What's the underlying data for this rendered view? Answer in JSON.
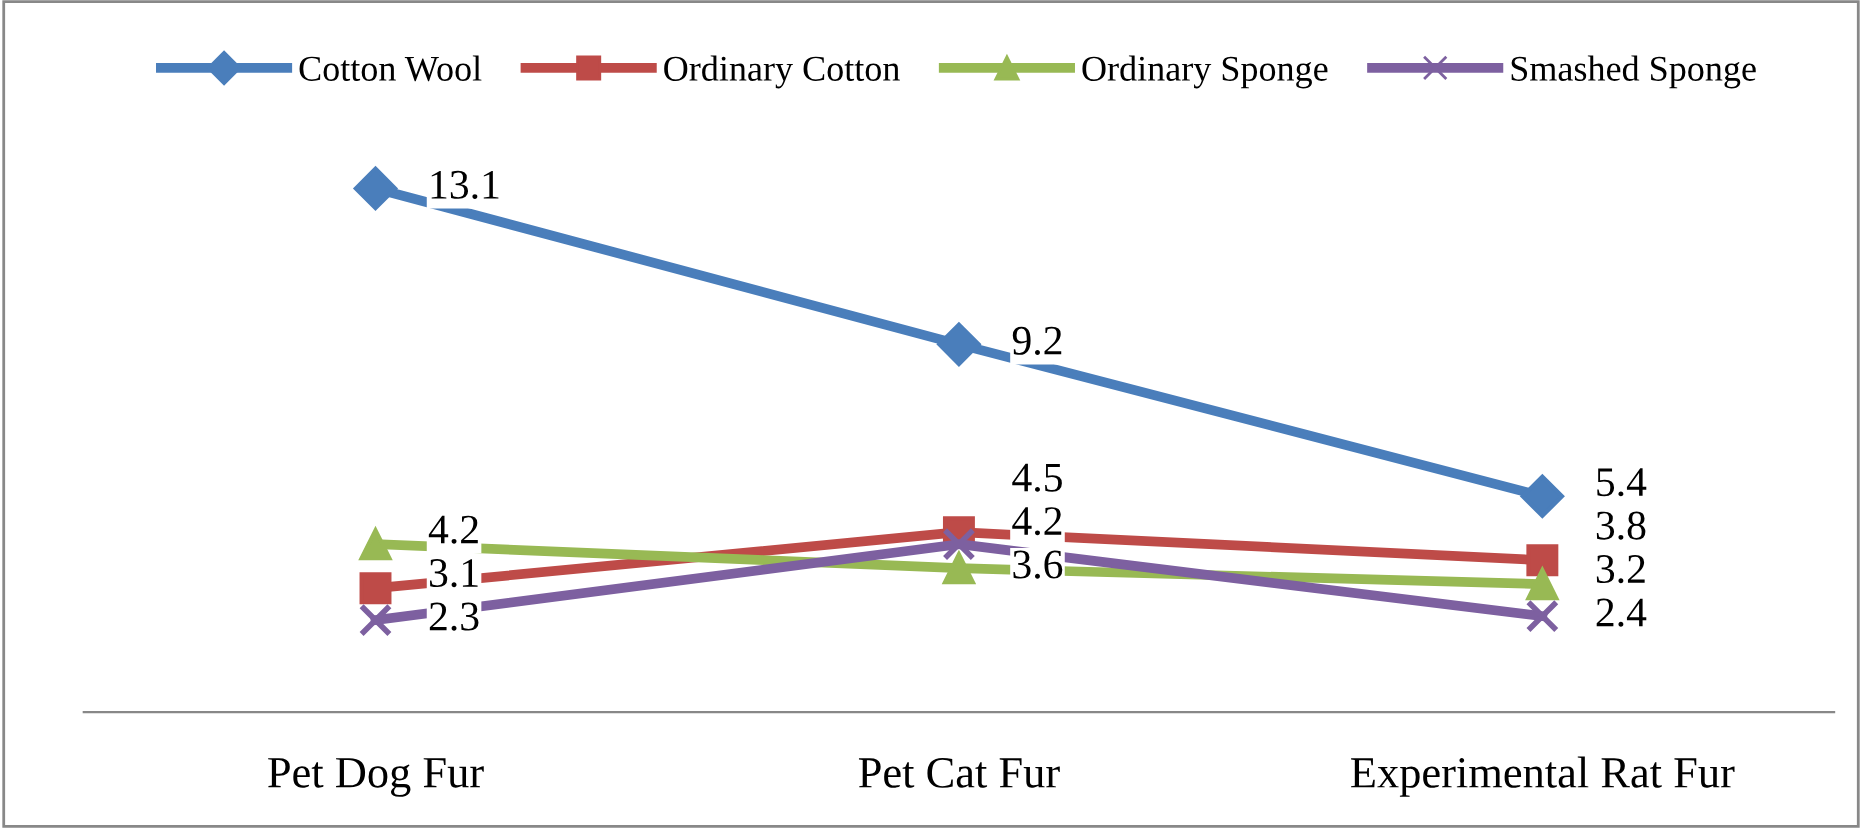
{
  "chart_data": {
    "type": "line",
    "categories": [
      "Pet Dog Fur",
      "Pet Cat Fur",
      "Experimental Rat Fur"
    ],
    "series": [
      {
        "name": "Cotton Wool",
        "color": "#4a7ebb",
        "marker": "diamond",
        "values": [
          13.1,
          9.2,
          5.4
        ]
      },
      {
        "name": "Ordinary Cotton",
        "color": "#be4b48",
        "marker": "square",
        "values": [
          3.1,
          4.5,
          3.8
        ]
      },
      {
        "name": "Ordinary Sponge",
        "color": "#98b954",
        "marker": "triangle",
        "values": [
          4.2,
          3.6,
          3.2
        ]
      },
      {
        "name": "Smashed Sponge",
        "color": "#7d60a0",
        "marker": "cross",
        "values": [
          2.3,
          4.2,
          2.4
        ]
      }
    ],
    "data_labels": true,
    "legend": "top",
    "grid": false,
    "tick_labels": "x",
    "line_style": "solid"
  }
}
